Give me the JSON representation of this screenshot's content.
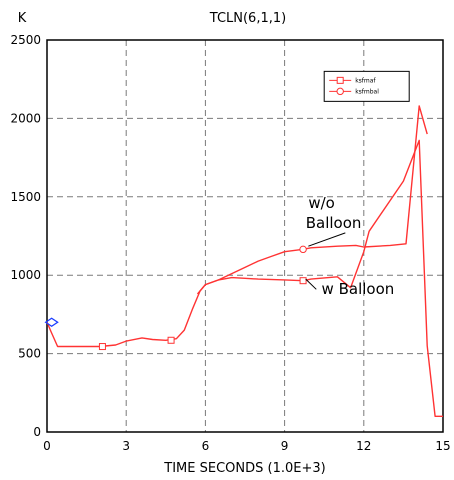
{
  "chart_data": {
    "type": "line",
    "title": "TCLN(6,1,1)",
    "unit_label": "K",
    "xlabel": "TIME SECONDS  (1.0E+3)",
    "ylabel": "",
    "xlim": [
      0,
      15
    ],
    "ylim": [
      0,
      2500
    ],
    "xticks": [
      "0",
      "3",
      "6",
      "9",
      "12",
      "15"
    ],
    "yticks": [
      "0",
      "500",
      "1000",
      "1500",
      "2000",
      "2500"
    ],
    "grid": true,
    "legend_position": "top-right",
    "colors": {
      "series": "#ff3333",
      "initial_marker": "#1a3dff"
    },
    "series": [
      {
        "name": "ksfmaf",
        "marker": "square",
        "x": [
          0,
          0.15,
          0.4,
          1.0,
          2.0,
          2.6,
          3.0,
          3.6,
          4.0,
          4.5,
          4.9,
          5.2,
          5.5,
          5.8,
          6.0,
          6.5,
          7.0,
          7.5,
          8.0,
          9.0,
          9.7,
          10.0,
          11.0,
          11.5,
          12.0,
          12.2,
          13.5,
          14.1,
          14.4,
          14.7,
          15.0
        ],
        "y": [
          700,
          640,
          545,
          545,
          545,
          555,
          580,
          600,
          590,
          585,
          595,
          650,
          780,
          900,
          940,
          970,
          985,
          980,
          975,
          970,
          965,
          975,
          990,
          920,
          1150,
          1280,
          1600,
          1860,
          550,
          100,
          100
        ]
      },
      {
        "name": "ksfmbal",
        "marker": "circle",
        "x": [
          5.7,
          6.0,
          6.5,
          7.0,
          7.5,
          8.0,
          8.5,
          9.0,
          9.7,
          10.0,
          11.0,
          11.7,
          12.0,
          13.0,
          13.6,
          14.1,
          14.4
        ],
        "y": [
          880,
          940,
          970,
          1010,
          1050,
          1090,
          1120,
          1150,
          1165,
          1175,
          1185,
          1190,
          1180,
          1190,
          1200,
          2080,
          1900
        ]
      }
    ],
    "marker_points": {
      "ksfmaf": [
        [
          2.1,
          545
        ],
        [
          4.7,
          585
        ],
        [
          9.7,
          965
        ]
      ],
      "ksfmbal": [
        [
          9.7,
          1165
        ]
      ]
    },
    "initial_marker": [
      0.1,
      700
    ],
    "annotations": [
      {
        "text": "w/o",
        "x": 9.9,
        "y": 1430
      },
      {
        "text": "Balloon",
        "x": 9.8,
        "y": 1300
      },
      {
        "text": "w Balloon",
        "x": 10.4,
        "y": 880
      }
    ],
    "annotation_leaders": [
      [
        [
          11.3,
          1270
        ],
        [
          9.9,
          1185
        ]
      ],
      [
        [
          10.2,
          910
        ],
        [
          9.8,
          975
        ]
      ]
    ]
  }
}
